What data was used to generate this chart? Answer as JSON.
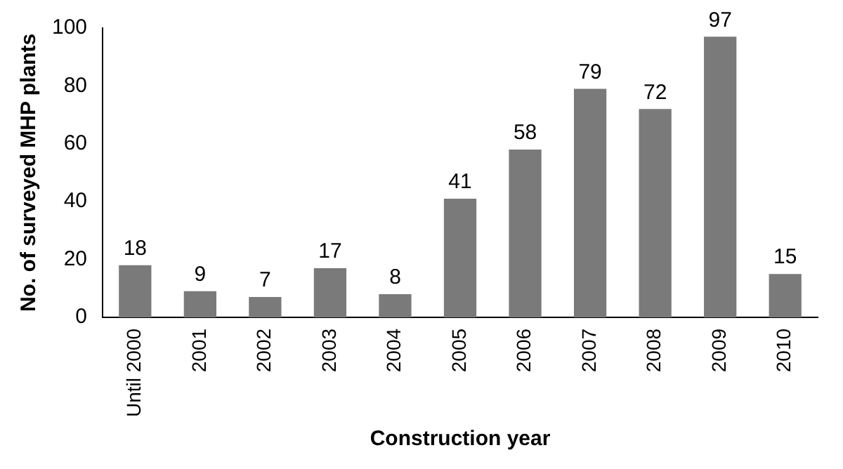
{
  "chart_data": {
    "type": "bar",
    "xlabel": "Construction year",
    "ylabel": "No. of surveyed MHP plants",
    "categories": [
      "Until 2000",
      "2001",
      "2002",
      "2003",
      "2004",
      "2005",
      "2006",
      "2007",
      "2008",
      "2009",
      "2010"
    ],
    "values": [
      18,
      9,
      7,
      17,
      8,
      41,
      58,
      79,
      72,
      97,
      15
    ],
    "color": "#7a7a7a",
    "ylim": [
      0,
      100
    ],
    "yticks": [
      0,
      20,
      40,
      60,
      80,
      100
    ],
    "grid": false,
    "legend": false,
    "data_labels": true
  }
}
